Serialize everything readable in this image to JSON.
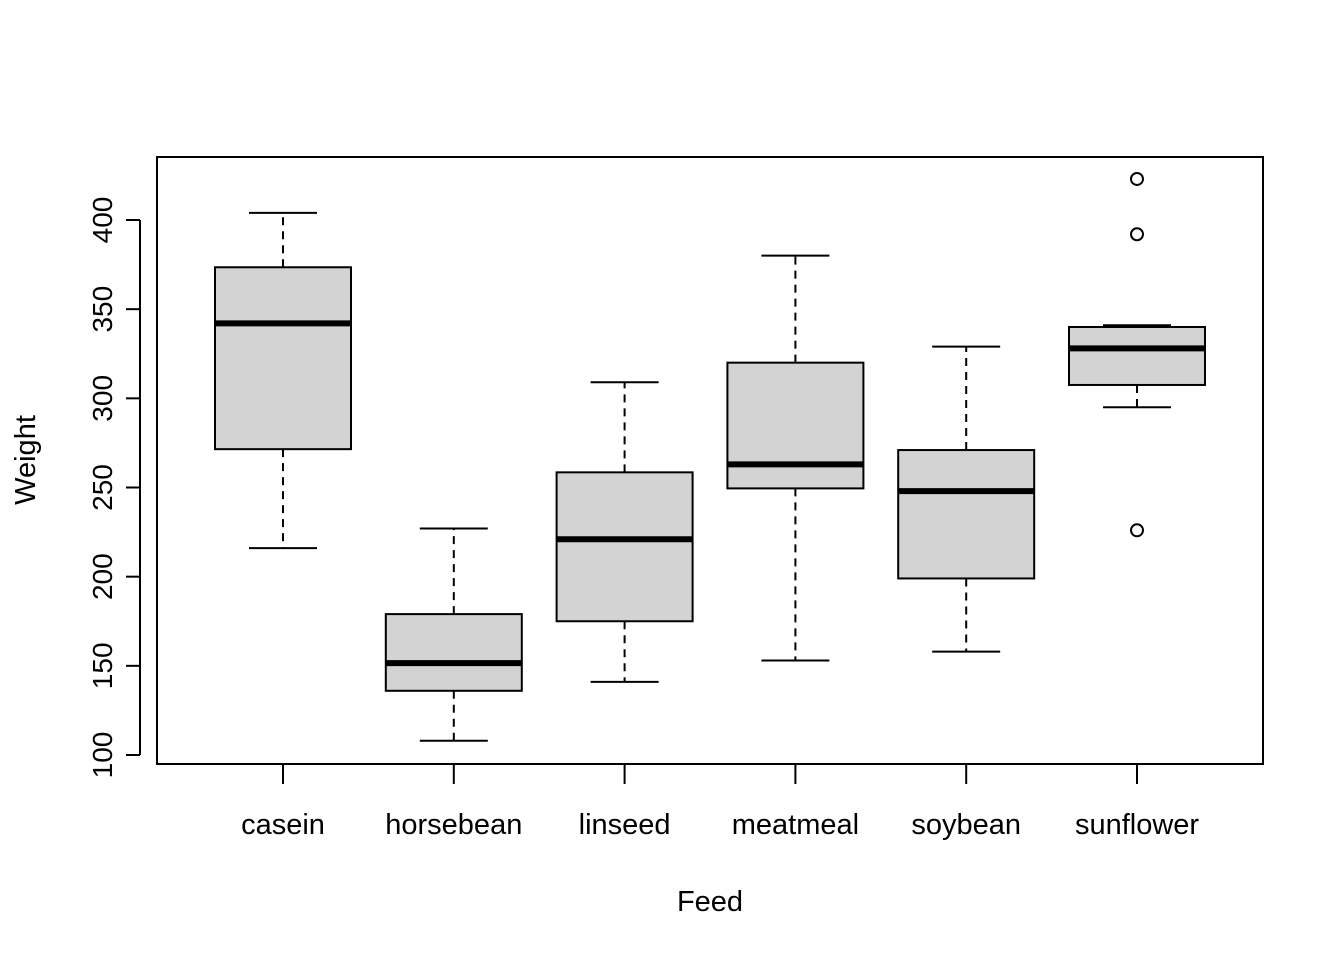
{
  "chart_data": {
    "type": "boxplot",
    "title": "",
    "xlabel": "Feed",
    "ylabel": "Weight",
    "ylim": [
      100,
      430
    ],
    "yticks": [
      100,
      150,
      200,
      250,
      300,
      350,
      400
    ],
    "ytick_labels": [
      "100",
      "150",
      "200",
      "250",
      "300",
      "350",
      "400"
    ],
    "box_fill": "#d3d3d3",
    "categories": [
      "casein",
      "horsebean",
      "linseed",
      "meatmeal",
      "soybean",
      "sunflower"
    ],
    "boxes": [
      {
        "name": "casein",
        "whisker_low": 216,
        "q1": 271.5,
        "median": 342,
        "q3": 373.5,
        "whisker_high": 404,
        "outliers": []
      },
      {
        "name": "horsebean",
        "whisker_low": 108,
        "q1": 136,
        "median": 151.5,
        "q3": 179,
        "whisker_high": 227,
        "outliers": []
      },
      {
        "name": "linseed",
        "whisker_low": 141,
        "q1": 175,
        "median": 221,
        "q3": 258.5,
        "whisker_high": 309,
        "outliers": []
      },
      {
        "name": "meatmeal",
        "whisker_low": 153,
        "q1": 249.5,
        "median": 263,
        "q3": 320,
        "whisker_high": 380,
        "outliers": []
      },
      {
        "name": "soybean",
        "whisker_low": 158,
        "q1": 199,
        "median": 248,
        "q3": 271,
        "whisker_high": 329,
        "outliers": []
      },
      {
        "name": "sunflower",
        "whisker_low": 295,
        "q1": 307.5,
        "median": 328,
        "q3": 340,
        "whisker_high": 341,
        "outliers": [
          226,
          392,
          423
        ]
      }
    ]
  }
}
